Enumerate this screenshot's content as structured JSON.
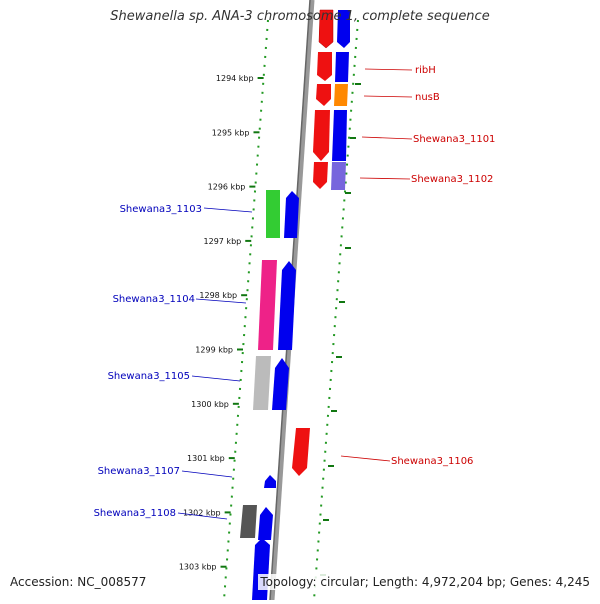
{
  "title": "Shewanella sp. ANA-3 chromosome 1, complete sequence",
  "accession_text": "Accession: NC_008577",
  "topology_text": "Topology: circular; Length: 4,972,204 bp; Genes: 4,245",
  "ticks": [
    "1294 kbp",
    "1295 kbp",
    "1296 kbp",
    "1297 kbp",
    "1298 kbp",
    "1299 kbp",
    "1300 kbp",
    "1301 kbp",
    "1302 kbp",
    "1303 kbp"
  ],
  "genes_reverse": [
    "Shewana3_1103",
    "Shewana3_1104",
    "Shewana3_1105",
    "Shewana3_1107",
    "Shewana3_1108"
  ],
  "genes_forward": [
    "ribH",
    "nusB",
    "Shewana3_1101",
    "Shewana3_1102",
    "Shewana3_1106"
  ],
  "colors": {
    "forward_label": "#cc0000",
    "reverse_label": "#0000bb",
    "cds_red": "#ee1111",
    "cds_blue": "#0000ee",
    "tick_green": "#228822",
    "backbone": "#888888"
  }
}
